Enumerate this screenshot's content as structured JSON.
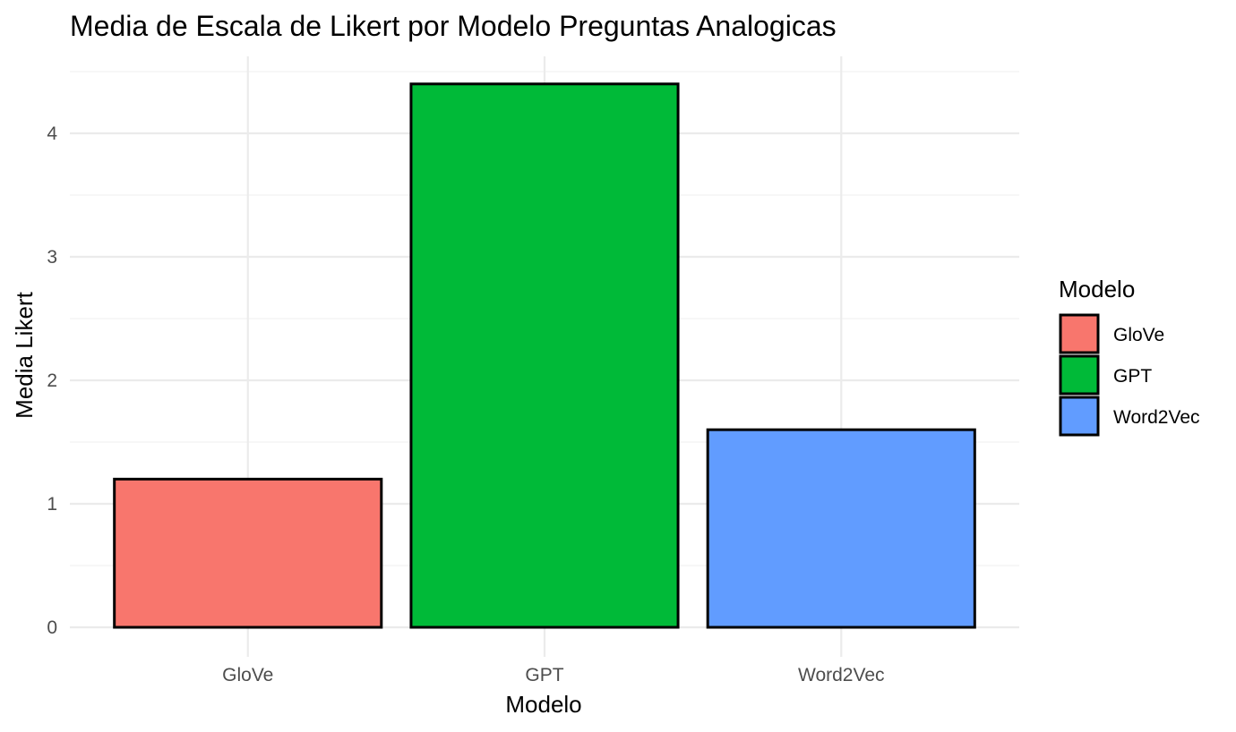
{
  "chart_data": {
    "type": "bar",
    "title": "Media de Escala de Likert por Modelo Preguntas Analogicas",
    "xlabel": "Modelo",
    "ylabel": "Media Likert",
    "categories": [
      "GloVe",
      "GPT",
      "Word2Vec"
    ],
    "values": [
      1.2,
      4.4,
      1.6
    ],
    "colors": [
      "#F8766D",
      "#00BA38",
      "#619CFF"
    ],
    "bar_outline": "#000000",
    "ylim": [
      0,
      4.5
    ],
    "yticks": [
      0,
      1,
      2,
      3,
      4
    ],
    "grid": true,
    "legend": {
      "title": "Modelo",
      "placement": "right",
      "entries": [
        "GloVe",
        "GPT",
        "Word2Vec"
      ]
    }
  }
}
